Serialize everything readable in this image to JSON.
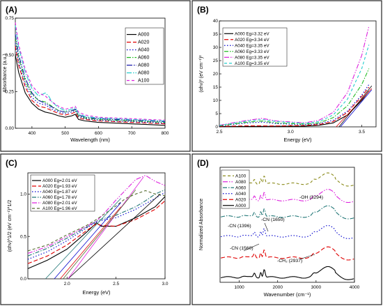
{
  "figure": {
    "panels": [
      "(A)",
      "(B)",
      "(C)",
      "(D)"
    ]
  },
  "chart_data": [
    {
      "panel": "(A)",
      "type": "line",
      "xlabel": "Wavelength (nm)",
      "ylabel": "Absorbance (a.u.)",
      "xlim": [
        350,
        800
      ],
      "ylim": [
        0,
        0.75
      ],
      "xticks": [
        400,
        500,
        600,
        700,
        800
      ],
      "yticks": [
        0.0,
        0.25,
        0.5,
        0.75
      ],
      "ytick_labels": [
        "0.00",
        "0.25",
        "0.50",
        "0.75"
      ],
      "legend": "top-right",
      "series": [
        {
          "name": "A000",
          "color": "#000000",
          "dash": "",
          "x": [
            350,
            360,
            380,
            400,
            420,
            440,
            460,
            480,
            500,
            520,
            530,
            540,
            560,
            600,
            650,
            700,
            750,
            800
          ],
          "y": [
            0.5,
            0.38,
            0.24,
            0.17,
            0.13,
            0.11,
            0.1,
            0.085,
            0.075,
            0.085,
            0.095,
            0.06,
            0.05,
            0.04,
            0.035,
            0.03,
            0.025,
            0.02
          ]
        },
        {
          "name": "A020",
          "color": "#e00000",
          "dash": "6,3",
          "x": [
            350,
            360,
            380,
            400,
            420,
            440,
            460,
            480,
            500,
            520,
            530,
            540,
            560,
            600,
            650,
            700,
            750,
            800
          ],
          "y": [
            0.56,
            0.43,
            0.28,
            0.19,
            0.15,
            0.14,
            0.12,
            0.1,
            0.09,
            0.1,
            0.11,
            0.07,
            0.06,
            0.05,
            0.045,
            0.04,
            0.035,
            0.03
          ]
        },
        {
          "name": "A040",
          "color": "#0000cc",
          "dash": "1.5,2.5",
          "x": [
            350,
            360,
            380,
            400,
            420,
            440,
            460,
            480,
            500,
            520,
            530,
            540,
            560,
            600,
            650,
            700,
            750,
            800
          ],
          "y": [
            0.58,
            0.45,
            0.3,
            0.21,
            0.17,
            0.16,
            0.13,
            0.11,
            0.1,
            0.11,
            0.12,
            0.08,
            0.065,
            0.055,
            0.05,
            0.045,
            0.04,
            0.035
          ]
        },
        {
          "name": "A060",
          "color": "#22bb22",
          "dash": "6,2,1.5,2",
          "x": [
            350,
            360,
            380,
            400,
            420,
            440,
            460,
            480,
            500,
            520,
            530,
            540,
            560,
            600,
            650,
            700,
            750,
            800
          ],
          "y": [
            0.62,
            0.48,
            0.32,
            0.23,
            0.19,
            0.18,
            0.15,
            0.12,
            0.11,
            0.12,
            0.125,
            0.085,
            0.07,
            0.06,
            0.055,
            0.05,
            0.045,
            0.04
          ]
        },
        {
          "name": "A080",
          "color": "#1a1aaa",
          "dash": "8,2,1.5,2,1.5,2",
          "x": [
            350,
            360,
            380,
            400,
            420,
            440,
            460,
            480,
            500,
            520,
            530,
            540,
            560,
            600,
            650,
            700,
            750,
            800
          ],
          "y": [
            0.64,
            0.5,
            0.34,
            0.24,
            0.19,
            0.17,
            0.145,
            0.12,
            0.11,
            0.12,
            0.13,
            0.09,
            0.075,
            0.065,
            0.06,
            0.055,
            0.05,
            0.045
          ]
        },
        {
          "name": "A080",
          "color": "#22cccc",
          "dash": "7,2,1.5,2",
          "x": [
            350,
            360,
            380,
            400,
            420,
            440,
            450,
            460,
            480,
            500,
            520,
            530,
            540,
            560,
            600,
            650,
            700,
            750,
            800
          ],
          "y": [
            0.7,
            0.55,
            0.38,
            0.27,
            0.22,
            0.24,
            0.22,
            0.18,
            0.14,
            0.12,
            0.13,
            0.14,
            0.1,
            0.08,
            0.07,
            0.065,
            0.06,
            0.055,
            0.05
          ]
        },
        {
          "name": "A100",
          "color": "#dd22dd",
          "dash": "4,3",
          "x": [
            350,
            360,
            380,
            400,
            420,
            440,
            460,
            480,
            500,
            520,
            530,
            540,
            560,
            600,
            650,
            700,
            750,
            800
          ],
          "y": [
            0.72,
            0.57,
            0.4,
            0.29,
            0.24,
            0.22,
            0.18,
            0.15,
            0.13,
            0.14,
            0.15,
            0.11,
            0.09,
            0.075,
            0.07,
            0.065,
            0.06,
            0.055
          ]
        }
      ]
    },
    {
      "panel": "(B)",
      "type": "line",
      "xlabel": "Energy (eV)",
      "ylabel": "(αhν)² (eV cm⁻¹)²",
      "xlim": [
        2.5,
        3.6
      ],
      "ylim": [
        0,
        40
      ],
      "xticks": [
        2.5,
        3.0,
        3.5
      ],
      "xtick_labels": [
        "2.5",
        "3.0",
        "3.5"
      ],
      "yticks": [
        0,
        5,
        10,
        15,
        20,
        25,
        30,
        35,
        40
      ],
      "legend": "top-left",
      "series": [
        {
          "name": "A000 Eg=3.32 eV",
          "color": "#000000",
          "dash": "",
          "x": [
            2.5,
            2.7,
            2.9,
            3.1,
            3.2,
            3.3,
            3.4,
            3.5,
            3.55
          ],
          "y": [
            0.1,
            0.15,
            0.2,
            0.3,
            0.6,
            1.5,
            4.5,
            10.0,
            13.5
          ]
        },
        {
          "name": "A020 Eg=3.34 eV",
          "color": "#e00000",
          "dash": "6,3",
          "x": [
            2.5,
            2.7,
            2.9,
            3.1,
            3.2,
            3.3,
            3.4,
            3.5,
            3.55
          ],
          "y": [
            0.2,
            0.4,
            0.35,
            0.5,
            0.9,
            2.0,
            5.5,
            11.5,
            15.0
          ]
        },
        {
          "name": "A040 Eg=3.35 eV",
          "color": "#0000cc",
          "dash": "1.5,2.5",
          "x": [
            2.5,
            2.7,
            2.8,
            2.9,
            3.1,
            3.2,
            3.3,
            3.4,
            3.5,
            3.55
          ],
          "y": [
            0.3,
            1.5,
            1.8,
            1.2,
            0.8,
            1.2,
            2.5,
            6.0,
            12.0,
            16.0
          ]
        },
        {
          "name": "A060 Eg=3.33 eV",
          "color": "#22bb22",
          "dash": "6,2,1.5,2",
          "x": [
            2.5,
            2.7,
            2.8,
            2.9,
            3.1,
            3.2,
            3.3,
            3.4,
            3.5,
            3.55
          ],
          "y": [
            0.4,
            1.8,
            2.2,
            1.5,
            1.0,
            1.5,
            3.5,
            8.0,
            16.0,
            22.0
          ]
        },
        {
          "name": "A080 Eg=3.35 eV",
          "color": "#dd22dd",
          "dash": "7,2,1.5,2,1.5,2",
          "x": [
            2.5,
            2.7,
            2.8,
            2.9,
            3.1,
            3.2,
            3.3,
            3.4,
            3.5,
            3.55
          ],
          "y": [
            0.6,
            2.5,
            3.2,
            2.2,
            1.5,
            2.5,
            5.5,
            13.0,
            27.0,
            38.0
          ]
        },
        {
          "name": "A100 Eg=3.35 eV",
          "color": "#22cccc",
          "dash": "4,3",
          "x": [
            2.5,
            2.7,
            2.8,
            2.9,
            3.1,
            3.2,
            3.3,
            3.4,
            3.5,
            3.55
          ],
          "y": [
            0.5,
            2.2,
            2.8,
            2.0,
            1.3,
            2.0,
            4.5,
            10.5,
            22.0,
            31.0
          ]
        }
      ],
      "tangent_lines": [
        {
          "x": [
            3.32,
            3.57
          ],
          "y": [
            0,
            14.5
          ],
          "color": "#e00000"
        },
        {
          "x": [
            3.34,
            3.57
          ],
          "y": [
            0,
            15.5
          ],
          "color": "#000000"
        },
        {
          "x": [
            3.35,
            3.57
          ],
          "y": [
            0,
            14.0
          ],
          "color": "#0000cc"
        }
      ]
    },
    {
      "panel": "(C)",
      "type": "line",
      "xlabel": "Energy (eV)",
      "ylabel": "(αhν)^1/2 (eV cm⁻¹)^1/2",
      "xlim": [
        1.6,
        3.0
      ],
      "ylim": [
        0,
        1.25
      ],
      "xticks": [
        2.0,
        2.5,
        3.0
      ],
      "xtick_labels": [
        "2.0",
        "2.5",
        "3.0"
      ],
      "yticks": [
        0.0,
        0.5,
        1.0
      ],
      "ytick_labels": [
        "0.0",
        "0.5",
        "1.0"
      ],
      "legend": "top-left",
      "series": [
        {
          "name": "A000 Eg=2.01 eV",
          "color": "#000000",
          "dash": "",
          "x": [
            1.6,
            1.8,
            2.0,
            2.2,
            2.3,
            2.35,
            2.5,
            2.7,
            2.9,
            3.0
          ],
          "y": [
            0.12,
            0.22,
            0.35,
            0.55,
            0.66,
            0.62,
            0.62,
            0.72,
            0.85,
            0.97
          ]
        },
        {
          "name": "A020 Eg=1.93 eV",
          "color": "#e00000",
          "dash": "6,3",
          "x": [
            1.6,
            1.8,
            2.0,
            2.2,
            2.3,
            2.35,
            2.5,
            2.7,
            2.9,
            3.0
          ],
          "y": [
            0.18,
            0.27,
            0.4,
            0.57,
            0.65,
            0.63,
            0.62,
            0.7,
            0.82,
            0.92
          ]
        },
        {
          "name": "A040 Eg=1.87 eV",
          "color": "#0000cc",
          "dash": "1.5,2.5",
          "x": [
            1.6,
            1.8,
            2.0,
            2.2,
            2.3,
            2.4,
            2.5,
            2.7,
            2.9,
            3.0
          ],
          "y": [
            0.23,
            0.32,
            0.45,
            0.6,
            0.67,
            0.7,
            0.72,
            0.82,
            0.95,
            1.02
          ]
        },
        {
          "name": "A060 Eg=1.78 eV",
          "color": "#227777",
          "dash": "6,2,1.5,2",
          "x": [
            1.6,
            1.8,
            2.0,
            2.2,
            2.3,
            2.4,
            2.5,
            2.7,
            2.8,
            2.9,
            3.0
          ],
          "y": [
            0.27,
            0.36,
            0.48,
            0.61,
            0.68,
            0.72,
            0.75,
            0.85,
            0.92,
            1.0,
            1.05
          ]
        },
        {
          "name": "A080 Eg=2.01 eV",
          "color": "#dd22dd",
          "dash": "7,2,1.5,2,1.5,2",
          "x": [
            1.6,
            1.8,
            2.0,
            2.2,
            2.3,
            2.4,
            2.5,
            2.6,
            2.7,
            2.8,
            2.9,
            3.0
          ],
          "y": [
            0.3,
            0.38,
            0.5,
            0.62,
            0.68,
            0.8,
            0.93,
            1.05,
            1.17,
            1.22,
            1.15,
            1.1
          ]
        },
        {
          "name": "A100 Eg=1.96 eV",
          "color": "#556b2f",
          "dash": "4,3",
          "x": [
            1.6,
            1.8,
            2.0,
            2.2,
            2.3,
            2.4,
            2.5,
            2.6,
            2.7,
            2.8,
            2.9,
            3.0
          ],
          "y": [
            0.33,
            0.4,
            0.52,
            0.63,
            0.7,
            0.78,
            0.86,
            0.95,
            1.0,
            1.04,
            1.0,
            0.98
          ]
        }
      ],
      "tangent_lines": [
        {
          "x": [
            2.01,
            2.95
          ],
          "y": [
            0,
            1.0
          ],
          "color": "#000000"
        },
        {
          "x": [
            1.93,
            2.55
          ],
          "y": [
            0,
            0.85
          ],
          "color": "#e00000"
        },
        {
          "x": [
            1.87,
            2.55
          ],
          "y": [
            0,
            0.9
          ],
          "color": "#0000cc"
        },
        {
          "x": [
            1.78,
            2.55
          ],
          "y": [
            0,
            0.95
          ],
          "color": "#227777"
        },
        {
          "x": [
            2.01,
            2.78
          ],
          "y": [
            0,
            1.2
          ],
          "color": "#dd22dd"
        },
        {
          "x": [
            1.96,
            2.7
          ],
          "y": [
            0,
            1.05
          ],
          "color": "#556b2f"
        }
      ]
    },
    {
      "panel": "(D)",
      "type": "line",
      "xlabel": "Wavenumber (cm⁻¹)",
      "ylabel": "Normalized Absorbance",
      "xlim": [
        500,
        4000
      ],
      "ylim": [
        0,
        7
      ],
      "xticks": [
        1000,
        2000,
        3000,
        4000
      ],
      "legend": "top-left",
      "series": [
        {
          "name": "A100",
          "color": "#8a8a1a",
          "dash": "4,3",
          "offset": 6.0
        },
        {
          "name": "A080",
          "color": "#dd22dd",
          "dash": "7,2,1.5,2,1.5,2",
          "offset": 5.0
        },
        {
          "name": "A060",
          "color": "#227777",
          "dash": "6,2,1.5,2",
          "offset": 4.0
        },
        {
          "name": "A040",
          "color": "#0000cc",
          "dash": "1.5,2.5",
          "offset": 2.8
        },
        {
          "name": "A020",
          "color": "#e00000",
          "dash": "6,3",
          "offset": 1.5
        },
        {
          "name": "A000",
          "color": "#000000",
          "dash": "",
          "offset": 0.3
        }
      ],
      "annotations": [
        {
          "text": "-OH (3294)"
        },
        {
          "text": "-CN (1650)"
        },
        {
          "text": "-CN (1396)"
        },
        {
          "text": "-CN (1560)"
        },
        {
          "text": "-CH₂ (2937)"
        }
      ]
    }
  ]
}
